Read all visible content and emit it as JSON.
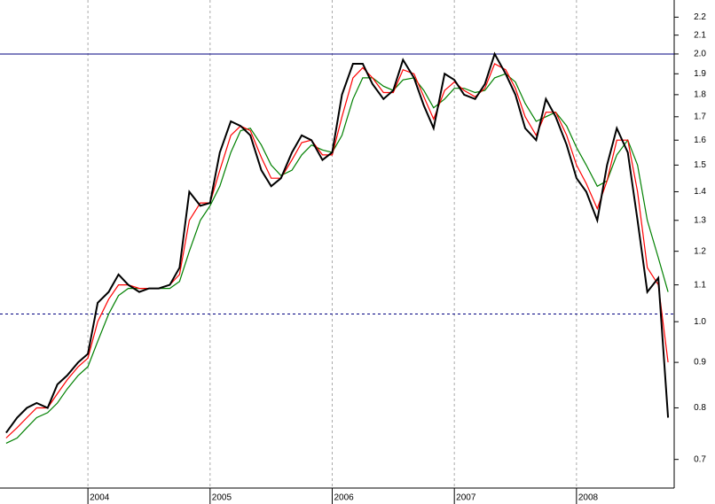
{
  "chart_data": {
    "type": "line",
    "log_y": true,
    "xgrid": true,
    "xlim": [
      2003.28,
      2008.8
    ],
    "xticks": [
      2004,
      2005,
      2006,
      2007,
      2008
    ],
    "ylim": [
      0.65,
      2.3
    ],
    "yticks": [
      0.7,
      0.8,
      0.9,
      {
        "value": 1.0,
        "label": "1.0"
      },
      1.1,
      1.2,
      1.3,
      1.4,
      1.5,
      1.6,
      1.7,
      1.8,
      1.9,
      {
        "value": 2.0,
        "label": "2.0"
      },
      2.1,
      2.2
    ],
    "hlines": [
      {
        "value": 2.0,
        "color": "#000080",
        "style": "solid"
      },
      {
        "value": 1.02,
        "color": "#000080",
        "style": "dashed"
      }
    ],
    "x": [
      2003.33,
      2003.42,
      2003.5,
      2003.58,
      2003.67,
      2003.75,
      2003.83,
      2003.92,
      2004.0,
      2004.08,
      2004.17,
      2004.25,
      2004.33,
      2004.42,
      2004.5,
      2004.58,
      2004.67,
      2004.75,
      2004.83,
      2004.92,
      2005.0,
      2005.08,
      2005.17,
      2005.25,
      2005.33,
      2005.42,
      2005.5,
      2005.58,
      2005.67,
      2005.75,
      2005.83,
      2005.92,
      2006.0,
      2006.08,
      2006.17,
      2006.25,
      2006.33,
      2006.42,
      2006.5,
      2006.58,
      2006.67,
      2006.75,
      2006.83,
      2006.92,
      2007.0,
      2007.08,
      2007.17,
      2007.25,
      2007.33,
      2007.42,
      2007.5,
      2007.58,
      2007.67,
      2007.75,
      2007.83,
      2007.92,
      2008.0,
      2008.08,
      2008.17,
      2008.25,
      2008.33,
      2008.42,
      2008.5,
      2008.58,
      2008.67,
      2008.75
    ],
    "series": [
      {
        "color": "#008000",
        "values": [
          0.73,
          0.74,
          0.76,
          0.78,
          0.79,
          0.81,
          0.84,
          0.87,
          0.89,
          0.95,
          1.02,
          1.07,
          1.09,
          1.09,
          1.09,
          1.09,
          1.09,
          1.11,
          1.2,
          1.3,
          1.35,
          1.42,
          1.55,
          1.64,
          1.65,
          1.58,
          1.5,
          1.46,
          1.48,
          1.54,
          1.58,
          1.56,
          1.55,
          1.62,
          1.78,
          1.88,
          1.88,
          1.84,
          1.82,
          1.87,
          1.88,
          1.82,
          1.74,
          1.78,
          1.83,
          1.83,
          1.81,
          1.82,
          1.88,
          1.9,
          1.86,
          1.76,
          1.68,
          1.7,
          1.72,
          1.66,
          1.57,
          1.5,
          1.42,
          1.44,
          1.54,
          1.6,
          1.5,
          1.3,
          1.18,
          1.08
        ]
      },
      {
        "color": "#ff0000",
        "values": [
          0.74,
          0.76,
          0.78,
          0.8,
          0.8,
          0.83,
          0.86,
          0.89,
          0.91,
          1.0,
          1.06,
          1.1,
          1.1,
          1.09,
          1.09,
          1.09,
          1.1,
          1.13,
          1.3,
          1.36,
          1.36,
          1.48,
          1.62,
          1.66,
          1.64,
          1.53,
          1.45,
          1.45,
          1.52,
          1.59,
          1.6,
          1.54,
          1.54,
          1.7,
          1.88,
          1.93,
          1.88,
          1.81,
          1.81,
          1.92,
          1.9,
          1.79,
          1.69,
          1.82,
          1.86,
          1.82,
          1.79,
          1.83,
          1.95,
          1.92,
          1.83,
          1.7,
          1.62,
          1.72,
          1.72,
          1.62,
          1.5,
          1.43,
          1.34,
          1.44,
          1.6,
          1.6,
          1.4,
          1.15,
          1.1,
          0.9
        ]
      },
      {
        "color": "#000000",
        "values": [
          0.75,
          0.78,
          0.8,
          0.81,
          0.8,
          0.85,
          0.87,
          0.9,
          0.92,
          1.05,
          1.08,
          1.13,
          1.1,
          1.08,
          1.09,
          1.09,
          1.1,
          1.15,
          1.4,
          1.35,
          1.36,
          1.55,
          1.68,
          1.66,
          1.62,
          1.48,
          1.42,
          1.45,
          1.55,
          1.62,
          1.6,
          1.52,
          1.55,
          1.8,
          1.95,
          1.95,
          1.85,
          1.78,
          1.82,
          1.97,
          1.88,
          1.75,
          1.65,
          1.9,
          1.87,
          1.8,
          1.78,
          1.85,
          2.0,
          1.9,
          1.8,
          1.65,
          1.6,
          1.78,
          1.7,
          1.58,
          1.45,
          1.4,
          1.3,
          1.5,
          1.65,
          1.55,
          1.3,
          1.08,
          1.12,
          0.78
        ]
      }
    ]
  }
}
